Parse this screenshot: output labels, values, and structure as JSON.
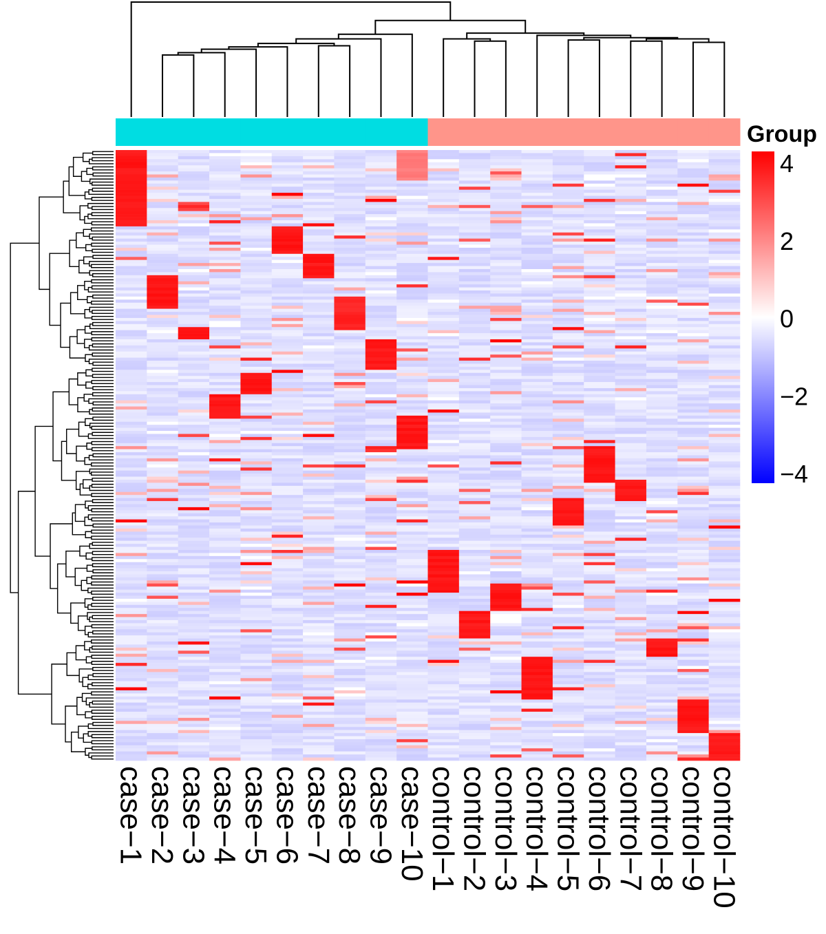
{
  "chart_data": {
    "type": "heatmap",
    "title": "",
    "columns": [
      "case−1",
      "case−2",
      "case−3",
      "case−4",
      "case−5",
      "case−6",
      "case−7",
      "case−8",
      "case−9",
      "case−10",
      "control−1",
      "control−2",
      "control−3",
      "control−4",
      "control−5",
      "control−6",
      "control−7",
      "control−8",
      "control−9",
      "control−10"
    ],
    "column_groups": [
      "case",
      "case",
      "case",
      "case",
      "case",
      "case",
      "case",
      "case",
      "case",
      "case",
      "control",
      "control",
      "control",
      "control",
      "control",
      "control",
      "control",
      "control",
      "control",
      "control"
    ],
    "group_colors": {
      "case": "#00DDE2",
      "control": "#FF958A"
    },
    "legend": {
      "title": "Group",
      "ticks": [
        "4",
        "2",
        "0",
        "−2",
        "−4"
      ],
      "tick_values": [
        4,
        2,
        0,
        -2,
        -4
      ],
      "range": [
        -4,
        4
      ],
      "colors": {
        "low": "#0000FF",
        "mid": "#FFFFFF",
        "high": "#FF0000"
      },
      "placement": "right"
    },
    "row_count_approx": 200,
    "background_value_approx": -0.5,
    "high_blocks": [
      {
        "column": "case−1",
        "rows": [
          0,
          25
        ],
        "value": 3.8
      },
      {
        "column": "case−10",
        "rows": [
          0,
          10
        ],
        "value": 2.2
      },
      {
        "column": "case−6",
        "rows": [
          25,
          34
        ],
        "value": 3.8
      },
      {
        "column": "case−7",
        "rows": [
          34,
          42
        ],
        "value": 3.8
      },
      {
        "column": "case−2",
        "rows": [
          41,
          52
        ],
        "value": 3.8
      },
      {
        "column": "case−8",
        "rows": [
          48,
          59
        ],
        "value": 3.6
      },
      {
        "column": "case−3",
        "rows": [
          58,
          62
        ],
        "value": 3.8
      },
      {
        "column": "case−9",
        "rows": [
          62,
          72
        ],
        "value": 3.8
      },
      {
        "column": "case−5",
        "rows": [
          73,
          80
        ],
        "value": 3.8
      },
      {
        "column": "case−4",
        "rows": [
          80,
          88
        ],
        "value": 3.8
      },
      {
        "column": "case−10",
        "rows": [
          87,
          98
        ],
        "value": 3.8
      },
      {
        "column": "control−6",
        "rows": [
          97,
          109
        ],
        "value": 3.8
      },
      {
        "column": "control−7",
        "rows": [
          108,
          115
        ],
        "value": 3.8
      },
      {
        "column": "control−5",
        "rows": [
          114,
          123
        ],
        "value": 3.8
      },
      {
        "column": "control−1",
        "rows": [
          131,
          145
        ],
        "value": 3.8
      },
      {
        "column": "control−3",
        "rows": [
          142,
          151
        ],
        "value": 3.8
      },
      {
        "column": "control−2",
        "rows": [
          151,
          160
        ],
        "value": 3.8
      },
      {
        "column": "control−8",
        "rows": [
          160,
          166
        ],
        "value": 3.8
      },
      {
        "column": "control−4",
        "rows": [
          166,
          180
        ],
        "value": 3.8
      },
      {
        "column": "control−9",
        "rows": [
          180,
          191
        ],
        "value": 3.8
      },
      {
        "column": "control−10",
        "rows": [
          191,
          200
        ],
        "value": 3.8
      }
    ],
    "column_dendrogram": {
      "merges": [
        {
          "a": "case−2",
          "b": "case−3",
          "height": 0.54
        },
        {
          "a": "m1",
          "b": "case−4",
          "height": 0.56
        },
        {
          "a": "m2",
          "b": "case−5",
          "height": 0.59
        },
        {
          "a": "m3",
          "b": "case−6",
          "height": 0.61
        },
        {
          "a": "case−7",
          "b": "case−8",
          "height": 0.62
        },
        {
          "a": "m4",
          "b": "m5",
          "height": 0.64
        },
        {
          "a": "m6",
          "b": "case−9",
          "height": 0.68
        },
        {
          "a": "m7",
          "b": "case−10",
          "height": 0.72
        },
        {
          "a": "control−2",
          "b": "control−3",
          "height": 0.66
        },
        {
          "a": "control−1",
          "b": "m9",
          "height": 0.68
        },
        {
          "a": "control−5",
          "b": "control−6",
          "height": 0.67
        },
        {
          "a": "control−7",
          "b": "control−8",
          "height": 0.66
        },
        {
          "a": "control−9",
          "b": "control−10",
          "height": 0.65
        },
        {
          "a": "m12",
          "b": "m13",
          "height": 0.68
        },
        {
          "a": "m11",
          "b": "m14",
          "height": 0.69
        },
        {
          "a": "control−4",
          "b": "m15",
          "height": 0.71
        },
        {
          "a": "m10",
          "b": "m16",
          "height": 0.73
        },
        {
          "a": "m8",
          "b": "m17",
          "height": 0.84
        },
        {
          "a": "case−1",
          "b": "m18",
          "height": 1.0
        }
      ]
    }
  }
}
